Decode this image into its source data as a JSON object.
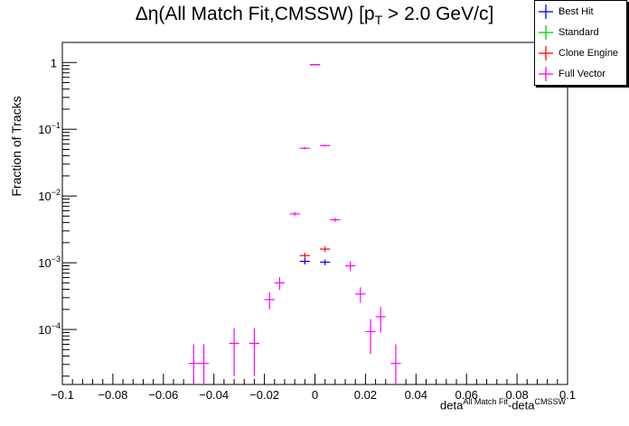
{
  "chart_data": {
    "type": "scatter",
    "title_main": "Δη(All Match Fit,CMSSW) [p",
    "title_sub": "T",
    "title_tail": " > 2.0 GeV/c]",
    "ylabel": "Fraction of Tracks",
    "xlabel_base1": "deta",
    "xlabel_sup1": "All Match Fit",
    "xlabel_base2": "-deta",
    "xlabel_sup2": "CMSSW",
    "xlim": [
      -0.1,
      0.1
    ],
    "ylim": [
      1.5e-05,
      2.0
    ],
    "yscale": "log",
    "x_tick_labels": [
      "−0.1",
      "−0.08",
      "−0.06",
      "−0.04",
      "−0.02",
      "0",
      "0.02",
      "0.04",
      "0.06",
      "0.08",
      "0.1"
    ],
    "x_ticks": [
      -0.1,
      -0.08,
      -0.06,
      -0.04,
      -0.02,
      0,
      0.02,
      0.04,
      0.06,
      0.08,
      0.1
    ],
    "y_ticks": [
      {
        "value": 1,
        "base": "1",
        "exp": ""
      },
      {
        "value": 0.1,
        "base": "10",
        "exp": "−1"
      },
      {
        "value": 0.01,
        "base": "10",
        "exp": "−2"
      },
      {
        "value": 0.001,
        "base": "10",
        "exp": "−3"
      },
      {
        "value": 0.0001,
        "base": "10",
        "exp": "−4"
      }
    ],
    "bin_half_width": 0.002,
    "legend_position": "top-right",
    "series": [
      {
        "name": "Best Hit",
        "color": "#0000ff",
        "points": [
          {
            "x": 0,
            "y": 0.93,
            "err": 0.005
          },
          {
            "x": -0.004,
            "y": 0.00105,
            "err": 0.00011
          },
          {
            "x": 0.004,
            "y": 0.00102,
            "err": 0.0001
          }
        ]
      },
      {
        "name": "Standard",
        "color": "#00cc00",
        "points": [
          {
            "x": 0,
            "y": 0.93,
            "err": 0.005
          }
        ]
      },
      {
        "name": "Clone Engine",
        "color": "#ff0000",
        "points": [
          {
            "x": 0,
            "y": 0.93,
            "err": 0.005
          },
          {
            "x": -0.004,
            "y": 0.00128,
            "err": 0.00013
          },
          {
            "x": 0.004,
            "y": 0.0016,
            "err": 0.00015
          }
        ]
      },
      {
        "name": "Full Vector",
        "color": "#ff00ff",
        "points": [
          {
            "x": -0.048,
            "y": 3.1e-05,
            "err": 2.9e-05
          },
          {
            "x": -0.044,
            "y": 3.1e-05,
            "err": 2.9e-05
          },
          {
            "x": -0.032,
            "y": 6.2e-05,
            "err": 4.2e-05
          },
          {
            "x": -0.024,
            "y": 6.2e-05,
            "err": 4.2e-05
          },
          {
            "x": -0.018,
            "y": 0.00028,
            "err": 8e-05
          },
          {
            "x": -0.014,
            "y": 0.0005,
            "err": 0.00011
          },
          {
            "x": -0.008,
            "y": 0.0054,
            "err": 0.0004
          },
          {
            "x": -0.004,
            "y": 0.052,
            "err": 0.002
          },
          {
            "x": 0,
            "y": 0.93,
            "err": 0.005
          },
          {
            "x": 0.004,
            "y": 0.057,
            "err": 0.002
          },
          {
            "x": 0.008,
            "y": 0.0044,
            "err": 0.0003
          },
          {
            "x": 0.014,
            "y": 0.0009,
            "err": 0.00015
          },
          {
            "x": 0.018,
            "y": 0.00034,
            "err": 9e-05
          },
          {
            "x": 0.022,
            "y": 9.3e-05,
            "err": 5e-05
          },
          {
            "x": 0.026,
            "y": 0.000155,
            "err": 6.5e-05
          },
          {
            "x": 0.032,
            "y": 3.1e-05,
            "err": 2.9e-05
          }
        ]
      }
    ]
  }
}
